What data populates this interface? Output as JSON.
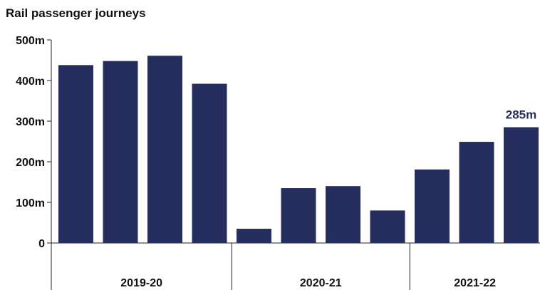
{
  "chart_data": {
    "type": "bar",
    "title": "Rail passenger journeys",
    "xlabel": "",
    "ylabel": "",
    "ylim": [
      0,
      500
    ],
    "y_ticks": [
      0,
      100,
      200,
      300,
      400,
      500
    ],
    "y_tick_labels": [
      "0",
      "100m",
      "200m",
      "300m",
      "400m",
      "500m"
    ],
    "groups": [
      {
        "label": "2019-20",
        "values": [
          438,
          448,
          461,
          392
        ]
      },
      {
        "label": "2020-21",
        "values": [
          35,
          135,
          140,
          80
        ]
      },
      {
        "label": "2021-22",
        "values": [
          181,
          249,
          285
        ]
      }
    ],
    "annotations": [
      {
        "group": 2,
        "index": 2,
        "text": "285m"
      }
    ],
    "colors": {
      "bar": "#252e5f",
      "annotation": "#252e5f",
      "axis": "#222222"
    },
    "grid": false,
    "legend": "none"
  }
}
